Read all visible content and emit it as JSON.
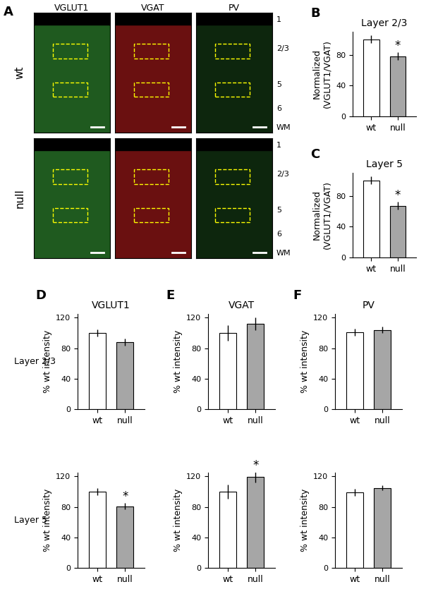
{
  "chart_data": [
    {
      "label": "B",
      "type": "bar",
      "title": "Layer 2/3",
      "y_label": "Normalized\n(VGLUT1/VGAT)",
      "categories": [
        "wt",
        "null"
      ],
      "values": [
        100,
        78
      ],
      "errors": [
        5,
        5
      ],
      "colors": [
        "#ffffff",
        "#a6a6a6"
      ],
      "ylim": [
        0,
        110
      ],
      "yticks": [
        0,
        40,
        80
      ],
      "annotations": [
        {
          "text": "*",
          "category": "null"
        }
      ]
    },
    {
      "label": "C",
      "type": "bar",
      "title": "Layer 5",
      "y_label": "Normalized\n(VGLUT1/VGAT)",
      "categories": [
        "wt",
        "null"
      ],
      "values": [
        100,
        67
      ],
      "errors": [
        5,
        5
      ],
      "colors": [
        "#ffffff",
        "#a6a6a6"
      ],
      "ylim": [
        0,
        110
      ],
      "yticks": [
        0,
        40,
        80
      ],
      "annotations": [
        {
          "text": "*",
          "category": "null"
        }
      ]
    },
    {
      "label": "D",
      "type": "bar",
      "title": "VGLUT1",
      "row_label": "Layer 2/3",
      "y_label": "% wt intensity",
      "categories": [
        "wt",
        "null"
      ],
      "values": [
        100,
        88
      ],
      "errors": [
        5,
        5
      ],
      "colors": [
        "#ffffff",
        "#a6a6a6"
      ],
      "ylim": [
        0,
        125
      ],
      "yticks": [
        0,
        40,
        80,
        120
      ]
    },
    {
      "label": "E",
      "type": "bar",
      "title": "VGAT",
      "y_label": "% wt intensity",
      "categories": [
        "wt",
        "null"
      ],
      "values": [
        100,
        112
      ],
      "errors": [
        10,
        8
      ],
      "colors": [
        "#ffffff",
        "#a6a6a6"
      ],
      "ylim": [
        0,
        125
      ],
      "yticks": [
        0,
        40,
        80,
        120
      ]
    },
    {
      "label": "F",
      "type": "bar",
      "title": "PV",
      "y_label": "% wt intensity",
      "categories": [
        "wt",
        "null"
      ],
      "values": [
        101,
        104
      ],
      "errors": [
        5,
        4
      ],
      "colors": [
        "#ffffff",
        "#a6a6a6"
      ],
      "ylim": [
        0,
        125
      ],
      "yticks": [
        0,
        40,
        80,
        120
      ]
    },
    {
      "type": "bar",
      "row_label": "Layer 5",
      "y_label": "% wt intensity",
      "categories": [
        "wt",
        "null"
      ],
      "values": [
        100,
        81
      ],
      "errors": [
        5,
        4
      ],
      "colors": [
        "#ffffff",
        "#a6a6a6"
      ],
      "ylim": [
        0,
        125
      ],
      "yticks": [
        0,
        40,
        80,
        120
      ],
      "annotations": [
        {
          "text": "*",
          "category": "null"
        }
      ]
    },
    {
      "type": "bar",
      "y_label": "% wt intensity",
      "categories": [
        "wt",
        "null"
      ],
      "values": [
        100,
        119
      ],
      "errors": [
        9,
        7
      ],
      "colors": [
        "#ffffff",
        "#a6a6a6"
      ],
      "ylim": [
        0,
        125
      ],
      "yticks": [
        0,
        40,
        80,
        120
      ],
      "annotations": [
        {
          "text": "*",
          "category": "null"
        }
      ]
    },
    {
      "type": "bar",
      "y_label": "% wt intensity",
      "categories": [
        "wt",
        "null"
      ],
      "values": [
        99,
        105
      ],
      "errors": [
        5,
        3
      ],
      "colors": [
        "#ffffff",
        "#a6a6a6"
      ],
      "ylim": [
        0,
        125
      ],
      "yticks": [
        0,
        40,
        80,
        120
      ]
    }
  ],
  "micrograph_panel": {
    "label": "A",
    "channels": [
      "VGLUT1",
      "VGAT",
      "PV"
    ],
    "rows": [
      "wt",
      "null"
    ],
    "layers": [
      "1",
      "2/3",
      "5",
      "6",
      "WM"
    ]
  }
}
